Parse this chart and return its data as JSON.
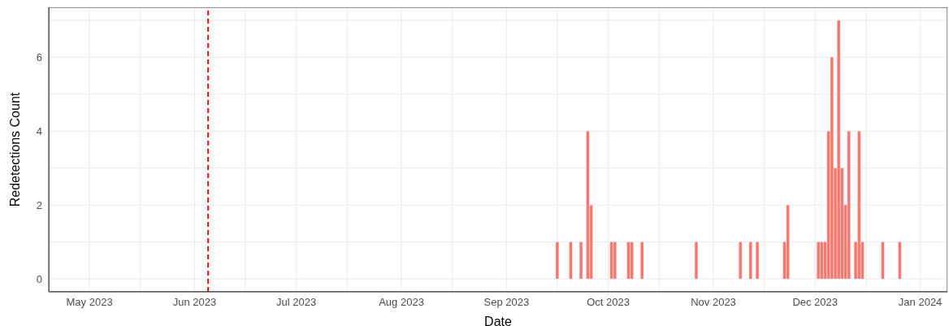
{
  "chart_data": {
    "type": "bar",
    "xlabel": "Date",
    "ylabel": "Redetections Count",
    "x": [
      "2023-09-16",
      "2023-09-20",
      "2023-09-23",
      "2023-09-25",
      "2023-09-26",
      "2023-10-02",
      "2023-10-03",
      "2023-10-07",
      "2023-10-08",
      "2023-10-11",
      "2023-10-27",
      "2023-11-09",
      "2023-11-12",
      "2023-11-14",
      "2023-11-22",
      "2023-11-23",
      "2023-12-02",
      "2023-12-03",
      "2023-12-04",
      "2023-12-05",
      "2023-12-06",
      "2023-12-07",
      "2023-12-08",
      "2023-12-09",
      "2023-12-10",
      "2023-12-11",
      "2023-12-13",
      "2023-12-14",
      "2023-12-15",
      "2023-12-21",
      "2023-12-26"
    ],
    "values": [
      1,
      1,
      1,
      4,
      2,
      1,
      1,
      1,
      1,
      1,
      1,
      1,
      1,
      1,
      1,
      2,
      1,
      1,
      1,
      4,
      6,
      3,
      7,
      3,
      2,
      4,
      1,
      4,
      1,
      1,
      1
    ],
    "color": "#f8766d",
    "xlim": [
      "2023-04-19",
      "2024-01-09"
    ],
    "xticks": [
      {
        "value": "2023-05-01",
        "label": "May 2023"
      },
      {
        "value": "2023-05-16",
        "label": null
      },
      {
        "value": "2023-06-01",
        "label": "Jun 2023"
      },
      {
        "value": "2023-06-16",
        "label": null
      },
      {
        "value": "2023-07-01",
        "label": "Jul 2023"
      },
      {
        "value": "2023-07-16",
        "label": null
      },
      {
        "value": "2023-08-01",
        "label": "Aug 2023"
      },
      {
        "value": "2023-08-16",
        "label": null
      },
      {
        "value": "2023-09-01",
        "label": "Sep 2023"
      },
      {
        "value": "2023-09-16",
        "label": null
      },
      {
        "value": "2023-10-01",
        "label": "Oct 2023"
      },
      {
        "value": "2023-10-16",
        "label": null
      },
      {
        "value": "2023-11-01",
        "label": "Nov 2023"
      },
      {
        "value": "2023-11-16",
        "label": null
      },
      {
        "value": "2023-12-01",
        "label": "Dec 2023"
      },
      {
        "value": "2023-12-16",
        "label": null
      },
      {
        "value": "2024-01-01",
        "label": "Jan 2024"
      }
    ],
    "ylim": [
      -0.35,
      7.35
    ],
    "yticks": [
      0,
      {
        "value": 1,
        "label": null
      },
      2,
      {
        "value": 3,
        "label": null
      },
      4,
      {
        "value": 5,
        "label": null
      },
      6,
      {
        "value": 7,
        "label": null
      }
    ],
    "grid": true,
    "ref_lines": [
      {
        "axis": "x",
        "value": "2023-06-05",
        "color": "#ff0000",
        "line_style": "dashed"
      }
    ]
  }
}
